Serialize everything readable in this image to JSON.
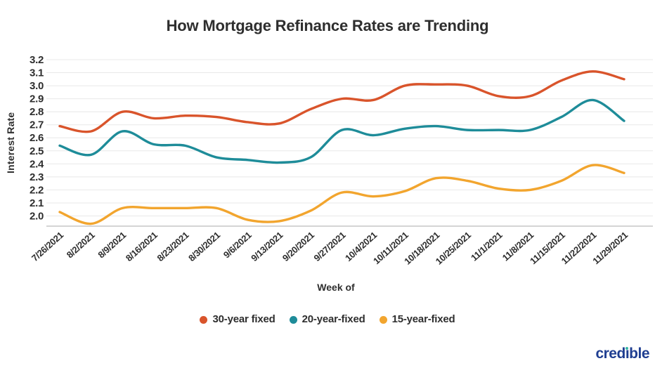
{
  "page": {
    "title": "How Mortgage Refinance Rates are Trending",
    "watermark": "credible"
  },
  "colors": {
    "series_30_year": "#D9542B",
    "series_20_year": "#1E8C99",
    "series_15_year": "#F2A52E",
    "grid": "#E8E8E8",
    "axis_line": "#C6C6C6",
    "text": "#2E2E2E",
    "logo_navy": "#1F3E91",
    "logo_dot_teal": "#35B7A5"
  },
  "chart_data": {
    "type": "line",
    "title": "How Mortgage Refinance Rates are Trending",
    "xlabel": "Week of",
    "ylabel": "Interest Rate",
    "x": [
      "7/26/2021",
      "8/2/2021",
      "8/9/2021",
      "8/16/2021",
      "8/23/2021",
      "8/30/2021",
      "9/6/2021",
      "9/13/2021",
      "9/20/2021",
      "9/27/2021",
      "10/4/2021",
      "10/11/2021",
      "10/18/2021",
      "10/25/2021",
      "11/1/2021",
      "11/8/2021",
      "11/15/2021",
      "11/22/2021",
      "11/29/2021"
    ],
    "series": [
      {
        "name": "30-year fixed",
        "color": "#D9542B",
        "values": [
          2.69,
          2.65,
          2.8,
          2.75,
          2.77,
          2.76,
          2.72,
          2.71,
          2.82,
          2.9,
          2.89,
          3.0,
          3.01,
          3.0,
          2.92,
          2.92,
          3.04,
          3.11,
          3.05
        ]
      },
      {
        "name": "20-year-fixed",
        "color": "#1E8C99",
        "values": [
          2.54,
          2.47,
          2.65,
          2.55,
          2.54,
          2.45,
          2.43,
          2.41,
          2.45,
          2.66,
          2.62,
          2.67,
          2.69,
          2.66,
          2.66,
          2.66,
          2.76,
          2.89,
          2.73
        ]
      },
      {
        "name": "15-year-fixed",
        "color": "#F2A52E",
        "values": [
          2.03,
          1.94,
          2.06,
          2.06,
          2.06,
          2.06,
          1.97,
          1.96,
          2.04,
          2.18,
          2.15,
          2.19,
          2.29,
          2.27,
          2.21,
          2.2,
          2.27,
          2.39,
          2.33
        ]
      }
    ],
    "ylim": [
      1.92,
      3.25
    ],
    "yticks": [
      3.2,
      3.1,
      3.0,
      2.9,
      2.8,
      2.7,
      2.6,
      2.5,
      2.4,
      2.3,
      2.2,
      2.1,
      2.0
    ],
    "grid": true,
    "legend_position": "bottom"
  }
}
